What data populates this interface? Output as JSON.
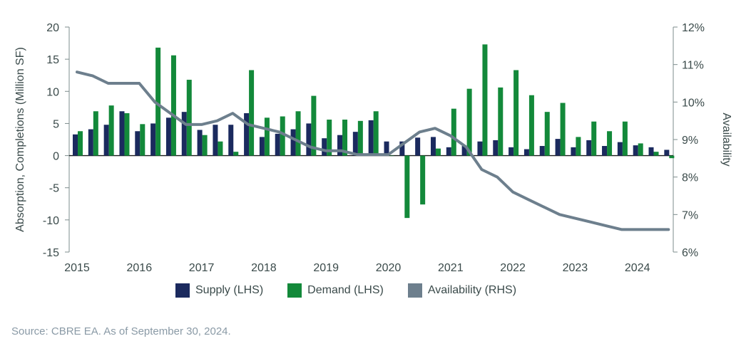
{
  "chart_data": {
    "type": "bar+line",
    "title": "",
    "xlabel": "",
    "ylabel_left": "Absorption, Completions (Million SF)",
    "ylabel_right": "Availability",
    "ylim_left": [
      -15,
      20
    ],
    "ylim_right": [
      6,
      12
    ],
    "y_ticks_left": [
      "20",
      "15",
      "10",
      "5",
      "0",
      "-5",
      "-10",
      "-15"
    ],
    "y_ticks_right": [
      "12%",
      "11%",
      "10%",
      "9%",
      "8%",
      "7%",
      "6%"
    ],
    "x_ticks": [
      "2015",
      "2016",
      "2017",
      "2018",
      "2019",
      "2020",
      "2021",
      "2022",
      "2023",
      "2024"
    ],
    "quarters": [
      "2015Q1",
      "2015Q2",
      "2015Q3",
      "2015Q4",
      "2016Q1",
      "2016Q2",
      "2016Q3",
      "2016Q4",
      "2017Q1",
      "2017Q2",
      "2017Q3",
      "2017Q4",
      "2018Q1",
      "2018Q2",
      "2018Q3",
      "2018Q4",
      "2019Q1",
      "2019Q2",
      "2019Q3",
      "2019Q4",
      "2020Q1",
      "2020Q2",
      "2020Q3",
      "2020Q4",
      "2021Q1",
      "2021Q2",
      "2021Q3",
      "2021Q4",
      "2022Q1",
      "2022Q2",
      "2022Q3",
      "2022Q4",
      "2023Q1",
      "2023Q2",
      "2023Q3",
      "2023Q4",
      "2024Q1",
      "2024Q2",
      "2024Q3"
    ],
    "series": [
      {
        "name": "Supply (LHS)",
        "axis": "left",
        "kind": "bar",
        "color": "#1b2a5e",
        "values": [
          3.3,
          4.1,
          4.8,
          6.9,
          3.8,
          5.0,
          5.9,
          6.8,
          4.0,
          4.8,
          4.8,
          6.6,
          2.9,
          3.4,
          4.1,
          5.0,
          2.7,
          3.2,
          3.7,
          5.5,
          2.2,
          2.2,
          2.8,
          2.9,
          1.3,
          1.5,
          2.2,
          2.4,
          1.3,
          1.0,
          1.5,
          2.6,
          1.3,
          2.4,
          1.5,
          2.1,
          1.6,
          1.3,
          0.9
        ]
      },
      {
        "name": "Demand (LHS)",
        "axis": "left",
        "kind": "bar",
        "color": "#13893a",
        "values": [
          3.8,
          6.9,
          7.8,
          6.6,
          4.9,
          16.8,
          15.6,
          11.8,
          3.2,
          2.2,
          0.6,
          13.3,
          5.9,
          6.1,
          6.9,
          9.3,
          5.6,
          5.6,
          5.4,
          6.9,
          0.0,
          -9.7,
          -7.6,
          1.1,
          7.3,
          10.4,
          17.3,
          10.6,
          13.3,
          9.4,
          6.8,
          8.2,
          2.9,
          5.3,
          3.8,
          5.3,
          1.9,
          0.6,
          -0.4
        ]
      },
      {
        "name": "Availability (RHS)",
        "axis": "right",
        "kind": "line",
        "color": "#6d7f8d",
        "values": [
          10.8,
          10.7,
          10.5,
          10.5,
          10.5,
          10.0,
          9.7,
          9.4,
          9.4,
          9.5,
          9.7,
          9.4,
          9.3,
          9.2,
          9.0,
          8.8,
          8.7,
          8.7,
          8.6,
          8.6,
          8.6,
          8.9,
          9.2,
          9.3,
          9.1,
          8.8,
          8.2,
          8.0,
          7.6,
          7.4,
          7.2,
          7.0,
          6.9,
          6.8,
          6.7,
          6.6,
          6.6,
          6.6,
          6.6
        ]
      }
    ]
  },
  "source_text": "Source: CBRE EA. As of September 30, 2024."
}
